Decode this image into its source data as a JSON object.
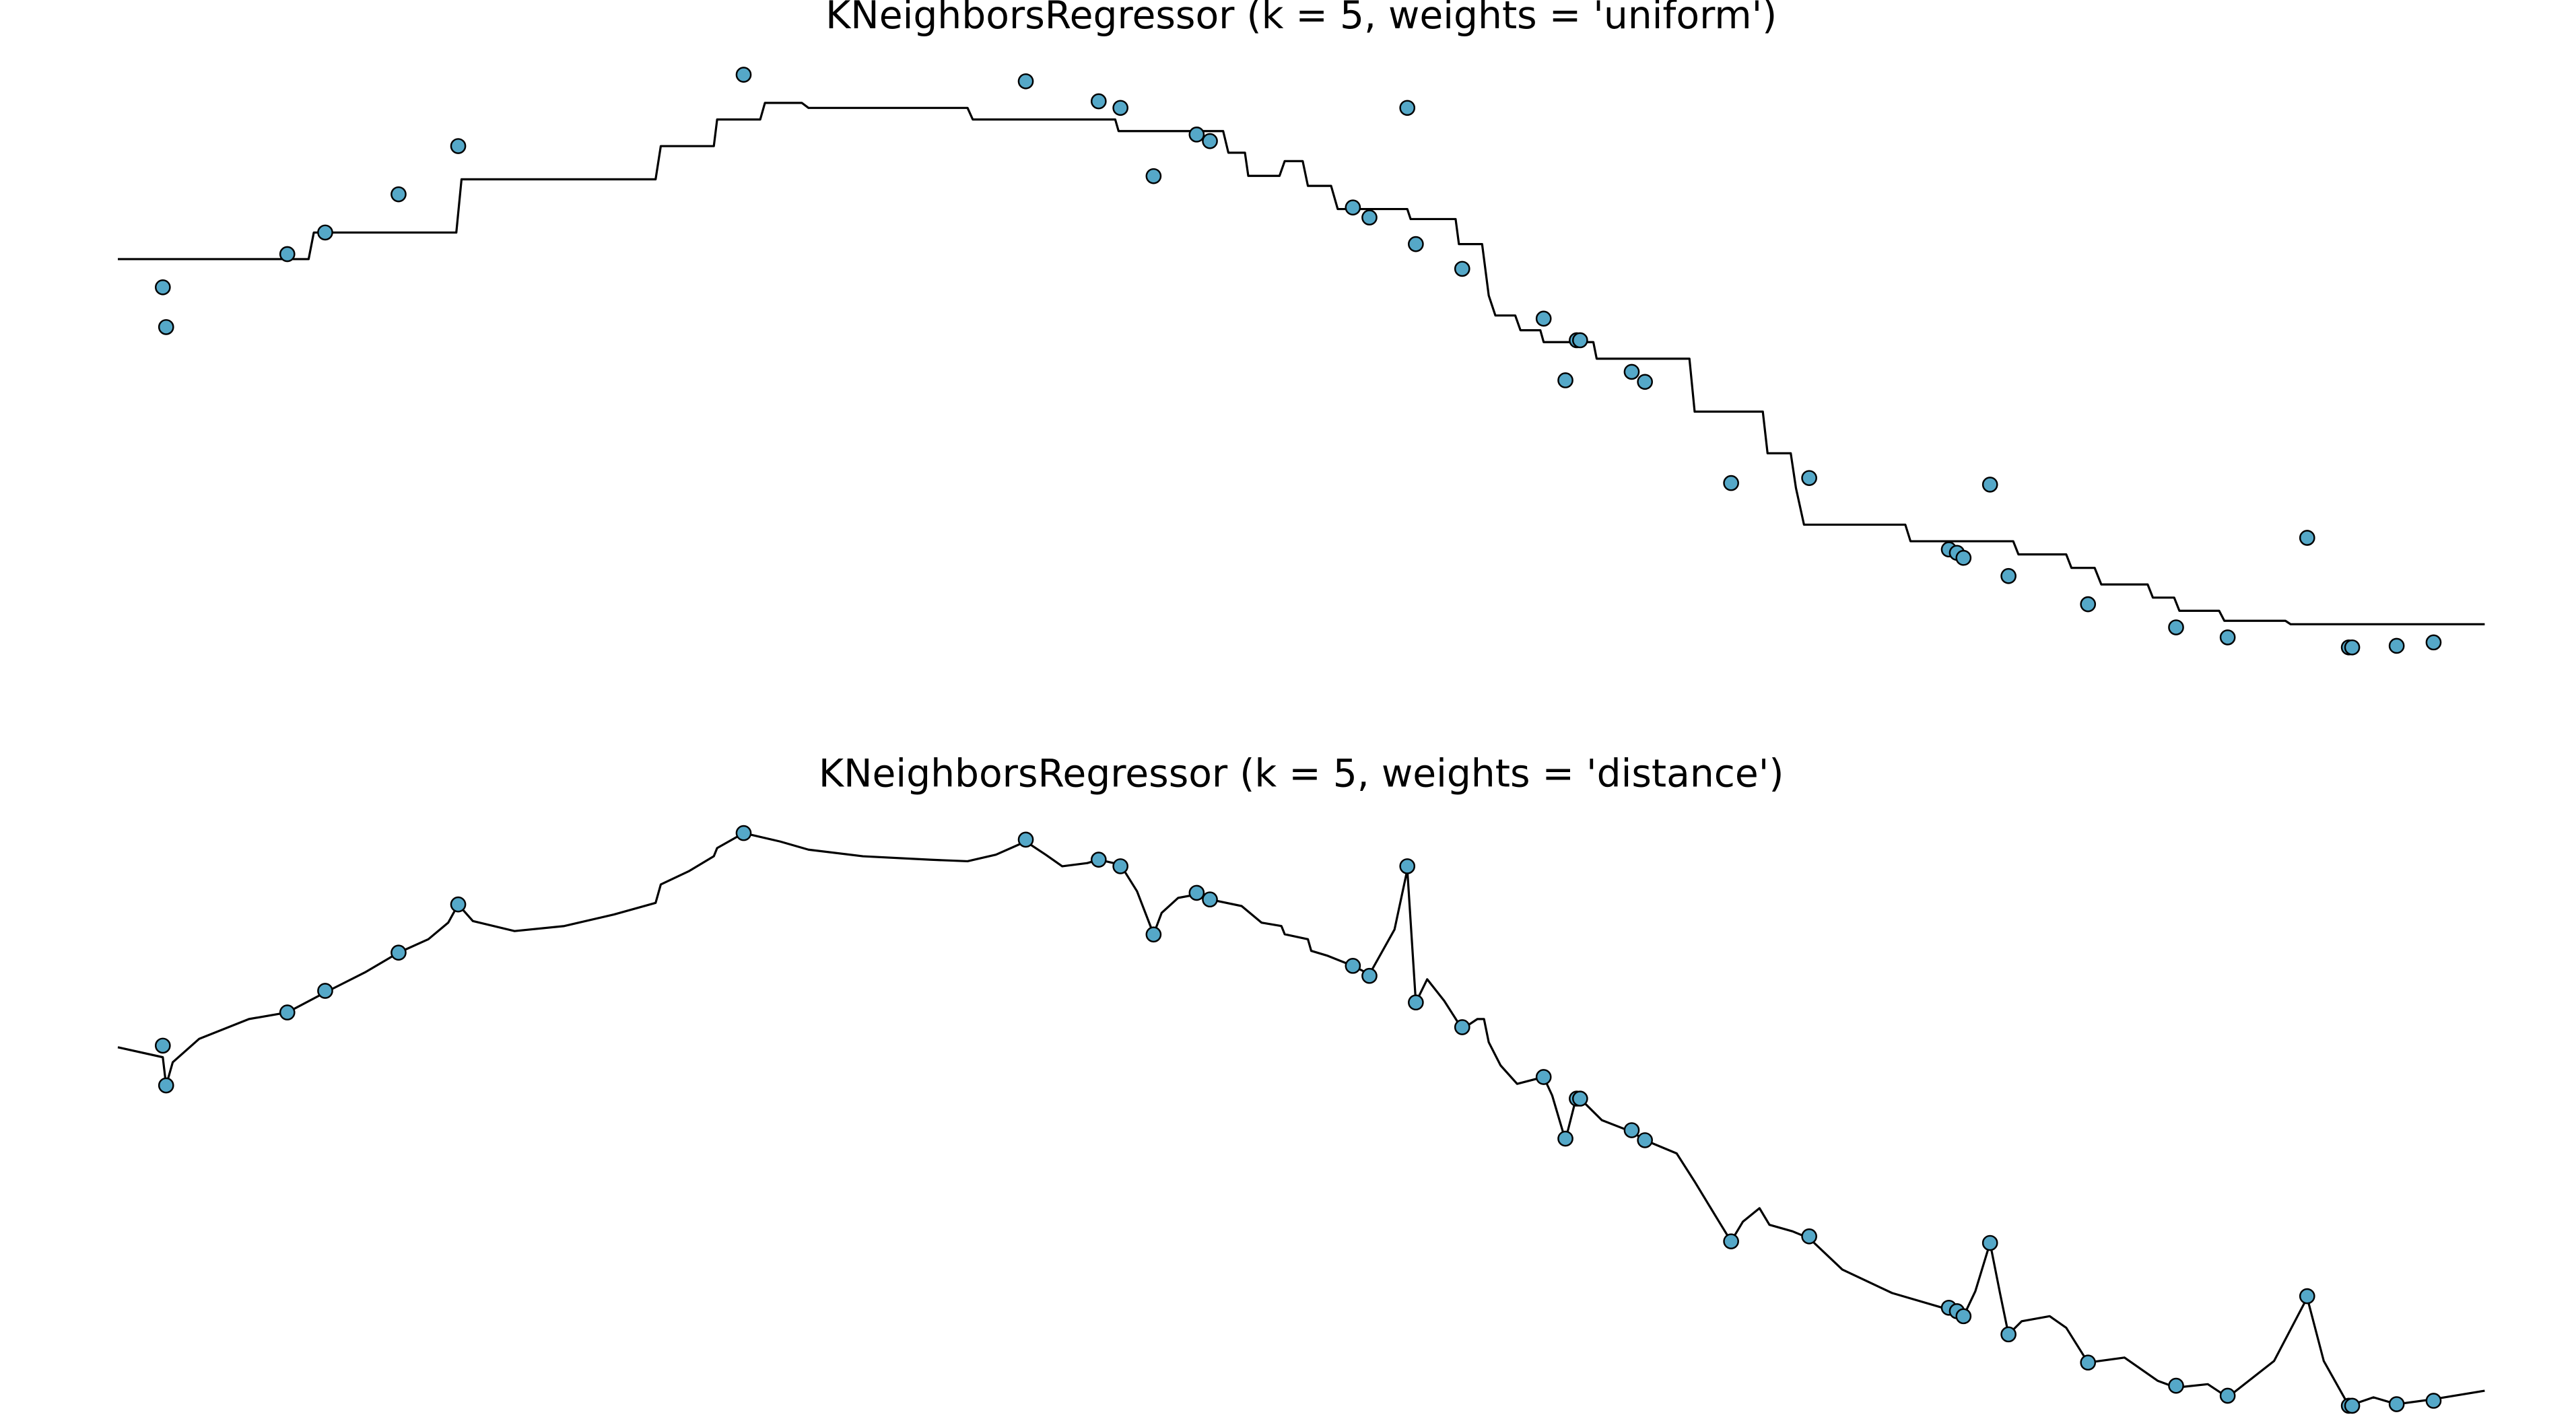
{
  "chart_data": [
    {
      "type": "scatter",
      "title": "KNeighborsRegressor (k = 5, weights = 'uniform')",
      "axes": false,
      "xlim": [
        0,
        5
      ],
      "ylim": [
        -1.1,
        1.3
      ],
      "series": [
        {
          "type": "scatter",
          "color": "#55a8c8",
          "x": [
            0.095,
            0.102,
            0.358,
            0.438,
            0.593,
            0.719,
            1.322,
            1.918,
            2.072,
            2.118,
            2.188,
            2.279,
            2.307,
            2.609,
            2.644,
            2.724,
            2.742,
            2.84,
            3.012,
            3.058,
            3.082,
            3.089,
            3.198,
            3.226,
            3.408,
            3.573,
            3.868,
            3.885,
            3.899,
            3.955,
            3.994,
            4.162,
            4.348,
            4.457,
            4.625,
            4.713,
            4.72,
            4.814,
            4.892
          ],
          "values": [
            0.321,
            0.17,
            0.447,
            0.529,
            0.674,
            0.857,
            1.128,
            1.103,
            1.027,
            1.002,
            0.743,
            0.901,
            0.876,
            0.624,
            0.586,
            1.002,
            0.485,
            0.391,
            0.202,
            -0.032,
            0.12,
            0.12,
            0.0,
            -0.038,
            -0.422,
            -0.403,
            -0.674,
            -0.687,
            -0.706,
            -0.428,
            -0.775,
            -0.882,
            -0.97,
            -1.008,
            -0.63,
            -1.046,
            -1.046,
            -1.04,
            -1.027
          ]
        },
        {
          "type": "line",
          "color": "#000000",
          "x": [
            0,
            0.403,
            0.414,
            0.715,
            0.726,
            1.136,
            1.147,
            1.259,
            1.266,
            1.357,
            1.367,
            1.445,
            1.459,
            1.795,
            1.806,
            2.107,
            2.114,
            2.335,
            2.346,
            2.381,
            2.388,
            2.454,
            2.465,
            2.503,
            2.514,
            2.563,
            2.577,
            2.724,
            2.731,
            2.826,
            2.833,
            2.882,
            2.896,
            2.91,
            2.952,
            2.963,
            3.005,
            3.012,
            3.117,
            3.124,
            3.32,
            3.331,
            3.475,
            3.485,
            3.534,
            3.545,
            3.562,
            3.776,
            3.787,
            4.004,
            4.015,
            4.116,
            4.127,
            4.176,
            4.19,
            4.288,
            4.299,
            4.344,
            4.355,
            4.439,
            4.45,
            4.579,
            4.59,
            5.0
          ],
          "values": [
            0.428,
            0.428,
            0.529,
            0.529,
            0.731,
            0.731,
            0.857,
            0.857,
            0.958,
            0.958,
            1.021,
            1.021,
            1.002,
            1.002,
            0.958,
            0.958,
            0.914,
            0.914,
            0.832,
            0.832,
            0.744,
            0.744,
            0.8,
            0.8,
            0.706,
            0.706,
            0.618,
            0.618,
            0.58,
            0.58,
            0.485,
            0.485,
            0.29,
            0.214,
            0.214,
            0.158,
            0.158,
            0.113,
            0.113,
            0.05,
            0.05,
            -0.151,
            -0.151,
            -0.309,
            -0.309,
            -0.441,
            -0.58,
            -0.58,
            -0.643,
            -0.643,
            -0.693,
            -0.693,
            -0.744,
            -0.744,
            -0.807,
            -0.807,
            -0.857,
            -0.857,
            -0.907,
            -0.907,
            -0.945,
            -0.945,
            -0.958,
            -0.958
          ]
        }
      ]
    },
    {
      "type": "scatter",
      "title": "KNeighborsRegressor (k = 5, weights = 'distance')",
      "axes": false,
      "xlim": [
        0,
        5
      ],
      "ylim": [
        -1.1,
        1.3
      ],
      "series": [
        {
          "type": "scatter",
          "color": "#55a8c8",
          "x": [
            0.095,
            0.102,
            0.358,
            0.438,
            0.593,
            0.719,
            1.322,
            1.918,
            2.072,
            2.118,
            2.188,
            2.279,
            2.307,
            2.609,
            2.644,
            2.724,
            2.742,
            2.84,
            3.012,
            3.058,
            3.082,
            3.089,
            3.198,
            3.226,
            3.408,
            3.573,
            3.868,
            3.885,
            3.899,
            3.955,
            3.994,
            4.162,
            4.348,
            4.457,
            4.625,
            4.713,
            4.72,
            4.814,
            4.892
          ],
          "values": [
            0.321,
            0.17,
            0.447,
            0.529,
            0.674,
            0.857,
            1.128,
            1.103,
            1.027,
            1.002,
            0.743,
            0.901,
            0.876,
            0.624,
            0.586,
            1.002,
            0.485,
            0.391,
            0.202,
            -0.032,
            0.12,
            0.12,
            0.0,
            -0.038,
            -0.422,
            -0.403,
            -0.674,
            -0.687,
            -0.706,
            -0.428,
            -0.775,
            -0.882,
            -0.97,
            -1.008,
            -0.63,
            -1.046,
            -1.046,
            -1.04,
            -1.027
          ]
        },
        {
          "type": "line",
          "color": "#000000",
          "x": [
            0,
            0.095,
            0.102,
            0.116,
            0.172,
            0.277,
            0.358,
            0.438,
            0.522,
            0.593,
            0.656,
            0.698,
            0.719,
            0.75,
            0.838,
            0.943,
            1.048,
            1.136,
            1.147,
            1.206,
            1.259,
            1.266,
            1.322,
            1.399,
            1.459,
            1.574,
            1.715,
            1.795,
            1.855,
            1.918,
            1.96,
            1.995,
            2.048,
            2.072,
            2.118,
            2.153,
            2.188,
            2.205,
            2.24,
            2.279,
            2.307,
            2.374,
            2.416,
            2.458,
            2.465,
            2.514,
            2.521,
            2.556,
            2.609,
            2.644,
            2.697,
            2.724,
            2.742,
            2.766,
            2.802,
            2.84,
            2.872,
            2.886,
            2.896,
            2.921,
            2.956,
            3.012,
            3.03,
            3.058,
            3.082,
            3.089,
            3.135,
            3.198,
            3.226,
            3.293,
            3.331,
            3.38,
            3.408,
            3.433,
            3.468,
            3.489,
            3.538,
            3.573,
            3.643,
            3.748,
            3.868,
            3.899,
            3.924,
            3.955,
            3.976,
            3.994,
            4.022,
            4.081,
            4.116,
            4.162,
            4.239,
            4.309,
            4.348,
            4.415,
            4.457,
            4.555,
            4.625,
            4.66,
            4.713,
            4.765,
            4.814,
            4.892,
            5.0
          ],
          "values": [
            0.315,
            0.277,
            0.17,
            0.258,
            0.347,
            0.422,
            0.447,
            0.523,
            0.599,
            0.674,
            0.725,
            0.788,
            0.857,
            0.794,
            0.756,
            0.775,
            0.819,
            0.863,
            0.933,
            0.983,
            1.04,
            1.071,
            1.128,
            1.096,
            1.065,
            1.04,
            1.027,
            1.021,
            1.046,
            1.096,
            1.046,
            1.002,
            1.014,
            1.027,
            1.008,
            0.907,
            0.744,
            0.825,
            0.882,
            0.895,
            0.876,
            0.851,
            0.788,
            0.775,
            0.744,
            0.725,
            0.681,
            0.662,
            0.624,
            0.592,
            0.762,
            0.989,
            0.485,
            0.573,
            0.491,
            0.384,
            0.422,
            0.422,
            0.334,
            0.246,
            0.176,
            0.202,
            0.132,
            -0.038,
            0.132,
            0.12,
            0.038,
            -0.006,
            -0.038,
            -0.088,
            -0.195,
            -0.34,
            -0.422,
            -0.347,
            -0.296,
            -0.359,
            -0.384,
            -0.41,
            -0.529,
            -0.618,
            -0.681,
            -0.706,
            -0.611,
            -0.428,
            -0.618,
            -0.775,
            -0.725,
            -0.706,
            -0.75,
            -0.882,
            -0.863,
            -0.951,
            -0.977,
            -0.964,
            -1.014,
            -0.876,
            -0.636,
            -0.876,
            -1.046,
            -1.014,
            -1.04,
            -1.021,
            -0.989
          ]
        }
      ]
    }
  ]
}
